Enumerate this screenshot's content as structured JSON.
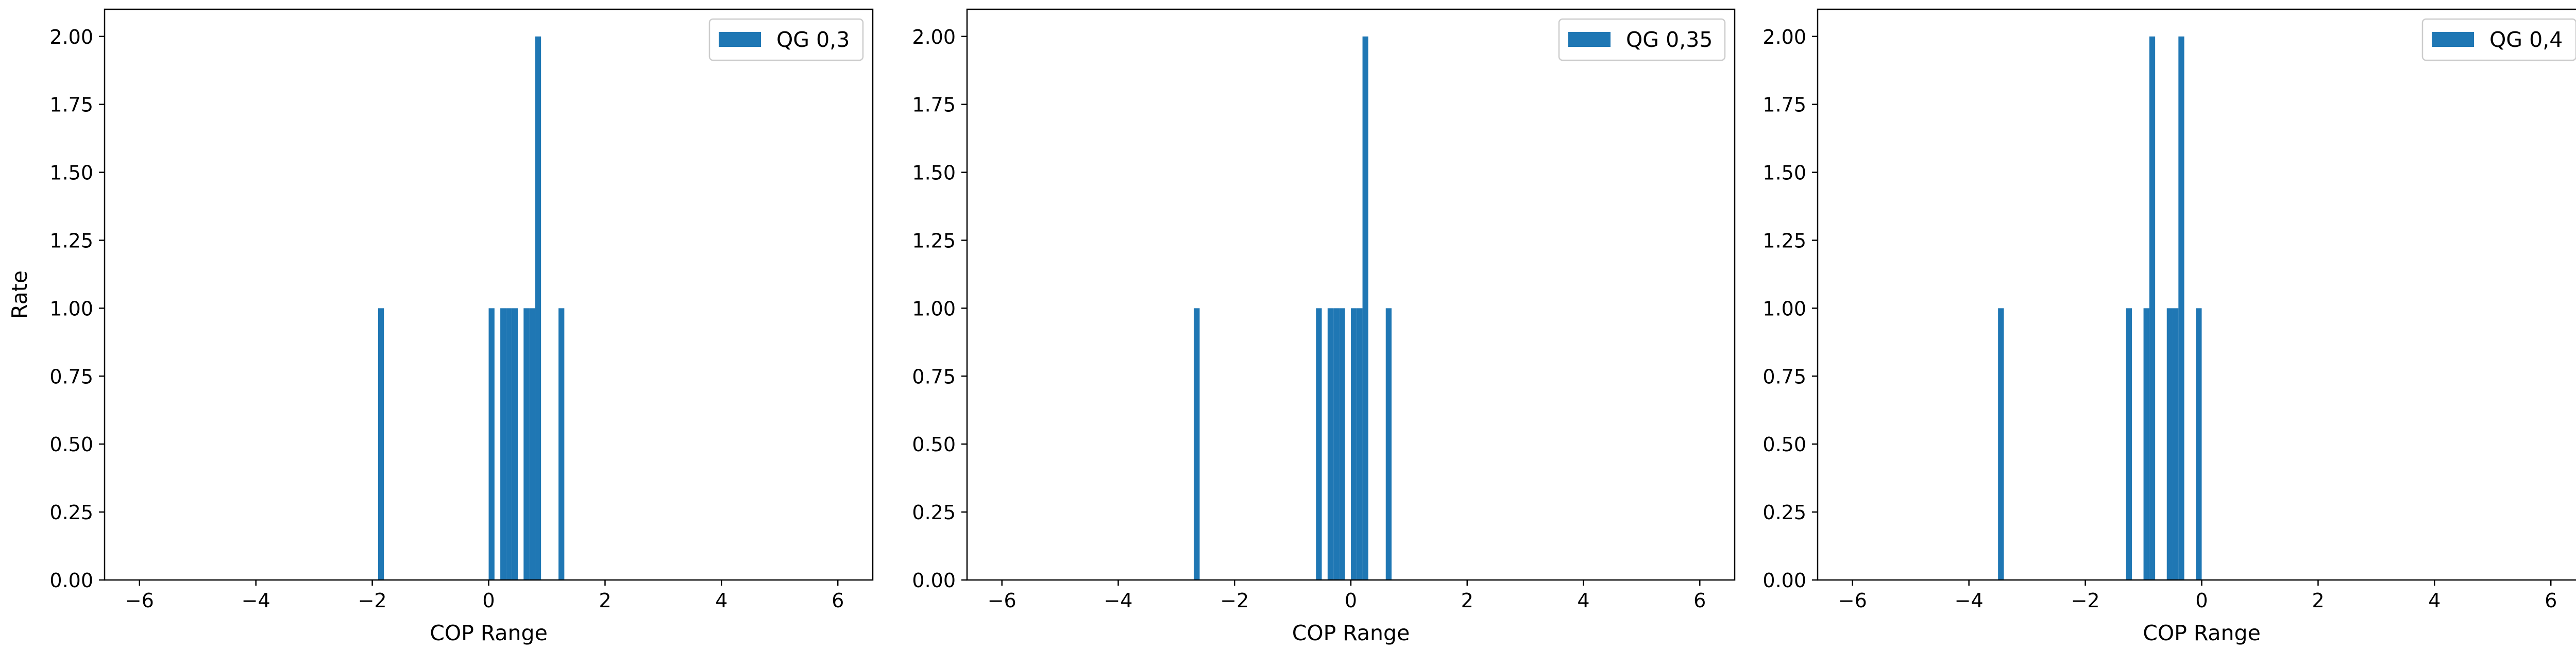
{
  "figure": {
    "bar_color": "#1f77b4"
  },
  "chart_data": [
    {
      "type": "bar",
      "xlabel": "COP Range",
      "ylabel": "Rate",
      "xlim": [
        -6.6,
        6.6
      ],
      "ylim": [
        0,
        2.1
      ],
      "x_ticks": [
        -6,
        -4,
        -2,
        0,
        2,
        4,
        6
      ],
      "y_ticks": [
        "0.00",
        "0.25",
        "0.50",
        "0.75",
        "1.00",
        "1.25",
        "1.50",
        "1.75",
        "2.00"
      ],
      "grid": false,
      "legend_position": "top-right",
      "series": [
        {
          "name": "QG 0,3",
          "bars": [
            {
              "x": -1.85,
              "value": 1
            },
            {
              "x": 0.05,
              "value": 1
            },
            {
              "x": 0.25,
              "value": 1
            },
            {
              "x": 0.35,
              "value": 1
            },
            {
              "x": 0.45,
              "value": 1
            },
            {
              "x": 0.65,
              "value": 1
            },
            {
              "x": 0.75,
              "value": 1
            },
            {
              "x": 0.85,
              "value": 2
            },
            {
              "x": 1.25,
              "value": 1
            }
          ]
        }
      ]
    },
    {
      "type": "bar",
      "xlabel": "COP Range",
      "ylabel": "",
      "xlim": [
        -6.6,
        6.6
      ],
      "ylim": [
        0,
        2.1
      ],
      "x_ticks": [
        -6,
        -4,
        -2,
        0,
        2,
        4,
        6
      ],
      "y_ticks": [
        "0.00",
        "0.25",
        "0.50",
        "0.75",
        "1.00",
        "1.25",
        "1.50",
        "1.75",
        "2.00"
      ],
      "grid": false,
      "legend_position": "top-right",
      "series": [
        {
          "name": "QG 0,35",
          "bars": [
            {
              "x": -2.65,
              "value": 1
            },
            {
              "x": -0.55,
              "value": 1
            },
            {
              "x": -0.35,
              "value": 1
            },
            {
              "x": -0.25,
              "value": 1
            },
            {
              "x": -0.15,
              "value": 1
            },
            {
              "x": 0.05,
              "value": 1
            },
            {
              "x": 0.15,
              "value": 1
            },
            {
              "x": 0.25,
              "value": 2
            },
            {
              "x": 0.65,
              "value": 1
            }
          ]
        }
      ]
    },
    {
      "type": "bar",
      "xlabel": "COP Range",
      "ylabel": "",
      "xlim": [
        -6.6,
        6.6
      ],
      "ylim": [
        0,
        2.1
      ],
      "x_ticks": [
        -6,
        -4,
        -2,
        0,
        2,
        4,
        6
      ],
      "y_ticks": [
        "0.00",
        "0.25",
        "0.50",
        "0.75",
        "1.00",
        "1.25",
        "1.50",
        "1.75",
        "2.00"
      ],
      "grid": false,
      "legend_position": "top-right",
      "series": [
        {
          "name": "QG 0,4",
          "bars": [
            {
              "x": -3.45,
              "value": 1
            },
            {
              "x": -1.25,
              "value": 1
            },
            {
              "x": -0.95,
              "value": 1
            },
            {
              "x": -0.85,
              "value": 2
            },
            {
              "x": -0.55,
              "value": 1
            },
            {
              "x": -0.45,
              "value": 1
            },
            {
              "x": -0.35,
              "value": 2
            },
            {
              "x": -0.05,
              "value": 1
            }
          ]
        }
      ]
    }
  ]
}
